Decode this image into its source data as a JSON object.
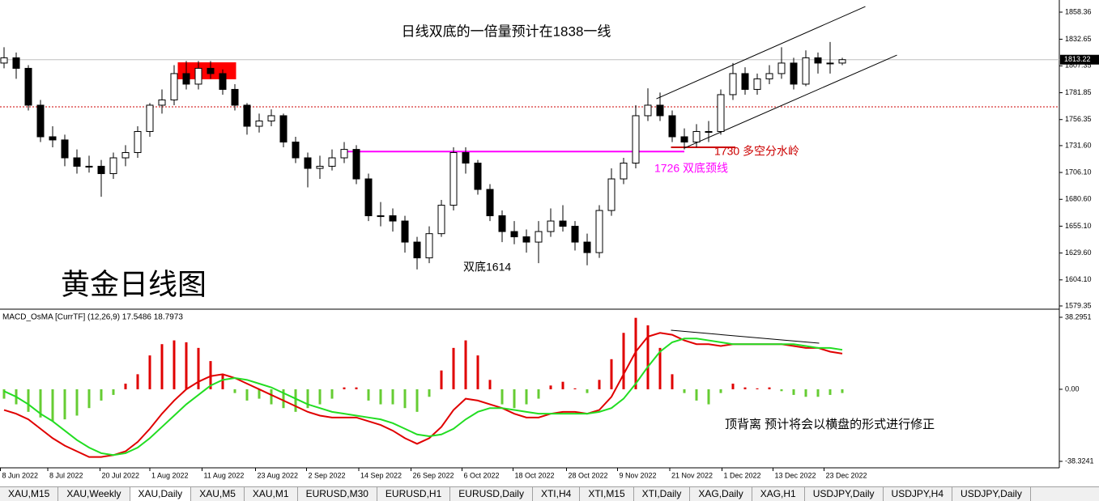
{
  "chart_data": [
    {
      "type": "candlestick",
      "title": "日线双底的一倍量预计在1838一线",
      "watermark": "黄金日线图",
      "annotations": [
        "双底1614",
        "1730 多空分水岭",
        "1726 双底颈线"
      ],
      "ylim": [
        1579.35,
        1858.36
      ],
      "yticks": [
        {
          "value": 1579.35,
          "label": "1579.35"
        },
        {
          "value": 1604.1,
          "label": "1604.10"
        },
        {
          "value": 1629.6,
          "label": "1629.60"
        },
        {
          "value": 1655.1,
          "label": "1655.10"
        },
        {
          "value": 1680.6,
          "label": "1680.60"
        },
        {
          "value": 1706.1,
          "label": "1706.10"
        },
        {
          "value": 1731.6,
          "label": "1731.60"
        },
        {
          "value": 1756.35,
          "label": "1756.35"
        },
        {
          "value": 1781.85,
          "label": "1781.85"
        },
        {
          "value": 1807.35,
          "label": "1807.35"
        },
        {
          "value": 1832.65,
          "label": "1832.65"
        },
        {
          "value": 1858.36,
          "label": "1858.36"
        }
      ],
      "xticks": [
        {
          "value": -0.3,
          "label": "8 Jun 2022"
        },
        {
          "value": 3.6,
          "label": "8 Jul 2022"
        },
        {
          "value": 7.9,
          "label": "20 Jul 2022"
        },
        {
          "value": 12,
          "label": "1 Aug 2022"
        },
        {
          "value": 16.3,
          "label": "11 Aug 2022"
        },
        {
          "value": 20.7,
          "label": "23 Aug 2022"
        },
        {
          "value": 24.9,
          "label": "2 Sep 2022"
        },
        {
          "value": 29.2,
          "label": "14 Sep 2022"
        },
        {
          "value": 33.5,
          "label": "26 Sep 2022"
        },
        {
          "value": 37.7,
          "label": "6 Oct 2022"
        },
        {
          "value": 41.9,
          "label": "18 Oct 2022"
        },
        {
          "value": 46.3,
          "label": "28 Oct 2022"
        },
        {
          "value": 50.5,
          "label": "9 Nov 2022"
        },
        {
          "value": 54.8,
          "label": "21 Nov 2022"
        },
        {
          "value": 59.1,
          "label": "1 Dec 2022"
        },
        {
          "value": 63.3,
          "label": "13 Dec 2022"
        },
        {
          "value": 67.5,
          "label": "23 Dec 2022"
        }
      ],
      "up_color": "#ffffff",
      "down_color": "#000000",
      "candles": [
        [
          1810,
          1825,
          1805,
          1815
        ],
        [
          1815,
          1820,
          1795,
          1805
        ],
        [
          1805,
          1808,
          1765,
          1770
        ],
        [
          1770,
          1775,
          1735,
          1740
        ],
        [
          1740,
          1750,
          1730,
          1737
        ],
        [
          1737,
          1742,
          1712,
          1720
        ],
        [
          1720,
          1728,
          1705,
          1712
        ],
        [
          1712,
          1722,
          1706,
          1712
        ],
        [
          1712,
          1718,
          1683,
          1705
        ],
        [
          1705,
          1725,
          1700,
          1720
        ],
        [
          1720,
          1732,
          1712,
          1725
        ],
        [
          1725,
          1750,
          1720,
          1745
        ],
        [
          1745,
          1772,
          1740,
          1770
        ],
        [
          1770,
          1785,
          1762,
          1775
        ],
        [
          1775,
          1808,
          1770,
          1800
        ],
        [
          1800,
          1812,
          1785,
          1790
        ],
        [
          1790,
          1812,
          1785,
          1805
        ],
        [
          1805,
          1812,
          1795,
          1800
        ],
        [
          1800,
          1804,
          1780,
          1785
        ],
        [
          1785,
          1790,
          1765,
          1770
        ],
        [
          1770,
          1772,
          1742,
          1750
        ],
        [
          1750,
          1762,
          1744,
          1755
        ],
        [
          1755,
          1766,
          1750,
          1760
        ],
        [
          1760,
          1762,
          1730,
          1735
        ],
        [
          1735,
          1740,
          1715,
          1720
        ],
        [
          1720,
          1725,
          1692,
          1710
        ],
        [
          1710,
          1722,
          1700,
          1712
        ],
        [
          1712,
          1728,
          1708,
          1720
        ],
        [
          1720,
          1735,
          1715,
          1728
        ],
        [
          1728,
          1732,
          1695,
          1700
        ],
        [
          1700,
          1705,
          1660,
          1665
        ],
        [
          1665,
          1678,
          1655,
          1665
        ],
        [
          1665,
          1672,
          1650,
          1660
        ],
        [
          1660,
          1665,
          1630,
          1640
        ],
        [
          1640,
          1645,
          1614,
          1625
        ],
        [
          1625,
          1655,
          1620,
          1648
        ],
        [
          1648,
          1680,
          1645,
          1675
        ],
        [
          1675,
          1730,
          1670,
          1725
        ],
        [
          1725,
          1730,
          1705,
          1715
        ],
        [
          1715,
          1718,
          1685,
          1690
        ],
        [
          1690,
          1695,
          1660,
          1665
        ],
        [
          1665,
          1670,
          1640,
          1650
        ],
        [
          1650,
          1660,
          1638,
          1645
        ],
        [
          1645,
          1652,
          1630,
          1640
        ],
        [
          1640,
          1660,
          1620,
          1650
        ],
        [
          1650,
          1672,
          1645,
          1660
        ],
        [
          1660,
          1675,
          1650,
          1655
        ],
        [
          1655,
          1660,
          1632,
          1640
        ],
        [
          1640,
          1648,
          1618,
          1630
        ],
        [
          1630,
          1675,
          1625,
          1670
        ],
        [
          1670,
          1710,
          1665,
          1700
        ],
        [
          1700,
          1720,
          1695,
          1715
        ],
        [
          1715,
          1770,
          1710,
          1760
        ],
        [
          1760,
          1786,
          1755,
          1770
        ],
        [
          1770,
          1782,
          1755,
          1760
        ],
        [
          1760,
          1765,
          1735,
          1740
        ],
        [
          1740,
          1748,
          1728,
          1735
        ],
        [
          1735,
          1752,
          1730,
          1745
        ],
        [
          1745,
          1755,
          1735,
          1745
        ],
        [
          1745,
          1785,
          1742,
          1780
        ],
        [
          1780,
          1810,
          1775,
          1800
        ],
        [
          1800,
          1806,
          1780,
          1785
        ],
        [
          1785,
          1800,
          1780,
          1795
        ],
        [
          1795,
          1808,
          1790,
          1800
        ],
        [
          1800,
          1825,
          1795,
          1810
        ],
        [
          1810,
          1815,
          1785,
          1790
        ],
        [
          1790,
          1822,
          1788,
          1815
        ],
        [
          1815,
          1820,
          1800,
          1810
        ],
        [
          1810,
          1830,
          1800,
          1810
        ],
        [
          1810,
          1815,
          1808,
          1813.22
        ]
      ],
      "levels": [
        {
          "value": 1726,
          "x": [
            28.3,
            56
          ],
          "color": "#ff00ff"
        },
        {
          "value": 1730,
          "x": [
            54.9,
            60.2
          ],
          "color": "#cc0000"
        }
      ],
      "resistance": {
        "value": 1768.4,
        "color": "#cc0000"
      },
      "channel": [
        {
          "x": [
            53.7,
            70.9
          ],
          "y": [
            1776.1,
            1863.7
          ]
        },
        {
          "x": [
            56,
            73.5
          ],
          "y": [
            1729.3,
            1817.6
          ]
        }
      ],
      "zone": {
        "x": [
          14.3,
          19.1
        ],
        "y": [
          1794.6,
          1810.7
        ],
        "color": "#ff0000"
      }
    },
    {
      "type": "macd",
      "label": "MACD_OsMA [CurrTF] (12,26,9) 17.5486 18.7973",
      "note": "顶背离 预计将会以横盘的形式进行修正",
      "ylim": [
        -38.3241,
        38.2951
      ],
      "yticks": [
        {
          "value": -38.3241,
          "label": "-38.3241"
        },
        {
          "value": 0,
          "label": "0.00"
        },
        {
          "value": 38.2951,
          "label": "38.2951"
        }
      ],
      "pos_color": "#e00000",
      "neg_color": "#66cc33",
      "macd_color": "#e00000",
      "signal_color": "#22dd22",
      "histogram": [
        -5,
        -8,
        -12,
        -15,
        -17,
        -16,
        -14,
        -10,
        -6,
        -3,
        3,
        8,
        18,
        24,
        26,
        25,
        22,
        15,
        8,
        -2,
        -6,
        -5,
        -8,
        -10,
        -12,
        -10,
        -8,
        -5,
        1,
        1,
        -6,
        -8,
        -8,
        -10,
        -12,
        -4,
        10,
        22,
        26,
        18,
        5,
        -8,
        -10,
        -8,
        -5,
        2,
        4,
        0.5,
        -2,
        5,
        16,
        30,
        38,
        34,
        22,
        8,
        -2,
        -6,
        -8,
        -2,
        3,
        1,
        0.5,
        1,
        -1,
        -3,
        -4,
        -4,
        -3,
        -2
      ],
      "macd": [
        -11,
        -13,
        -16,
        -21,
        -26,
        -30,
        -33,
        -36,
        -36,
        -35,
        -33,
        -28,
        -21,
        -13,
        -6,
        0,
        4,
        7,
        8,
        6,
        3,
        0,
        -3,
        -6,
        -9,
        -12,
        -14,
        -15,
        -15,
        -15,
        -17,
        -19,
        -22,
        -26,
        -29,
        -26,
        -20,
        -11,
        -5,
        -6,
        -8,
        -10,
        -13,
        -15,
        -15,
        -13,
        -12,
        -12,
        -13,
        -11,
        -4,
        8,
        20,
        28,
        30,
        29,
        26,
        24,
        24,
        23,
        24,
        24,
        24,
        24,
        24,
        23,
        22,
        22,
        20,
        19
      ],
      "signal": [
        -1,
        -4,
        -8,
        -13,
        -17,
        -22,
        -27,
        -31,
        -34,
        -35,
        -34,
        -31,
        -26,
        -20,
        -14,
        -8,
        -3,
        2,
        5,
        6,
        5,
        3,
        1,
        -2,
        -5,
        -8,
        -10,
        -12,
        -13,
        -14,
        -15,
        -16,
        -18,
        -21,
        -24,
        -25,
        -24,
        -21,
        -16,
        -12,
        -10,
        -10,
        -11,
        -12,
        -13,
        -13,
        -13,
        -13,
        -13,
        -12,
        -10,
        -5,
        3,
        12,
        20,
        25,
        27,
        27,
        26,
        25,
        24,
        24,
        24,
        24,
        24,
        24,
        23,
        22,
        22,
        21
      ],
      "divergence": {
        "x": [
          54.9,
          67.1
        ],
        "y": [
          31.4,
          24.5
        ]
      }
    }
  ],
  "tabs": {
    "items": [
      "XAU,M15",
      "XAU,Weekly",
      "XAU,Daily",
      "XAU,M5",
      "XAU,M1",
      "EURUSD,M30",
      "EURUSD,H1",
      "EURUSD,Daily",
      "XTI,H4",
      "XTI,M15",
      "XTI,Daily",
      "XAG,Daily",
      "XAG,H1",
      "USDJPY,Daily",
      "USDJPY,H4",
      "USDJPY,Daily"
    ],
    "active": 2
  }
}
